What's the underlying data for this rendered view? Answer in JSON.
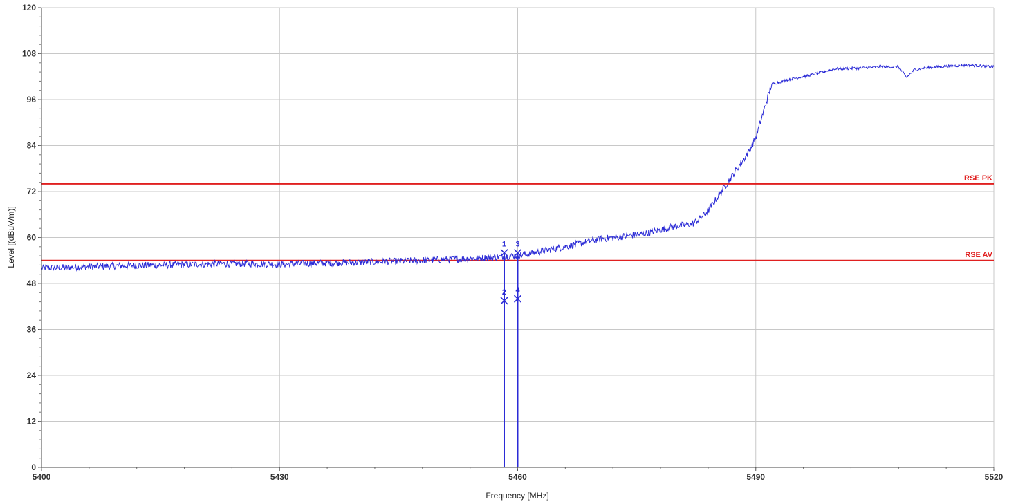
{
  "chart_data": {
    "type": "line",
    "xlabel": "Frequency [MHz]",
    "ylabel": "Level [(dBuV/m)]",
    "xlim": [
      5400,
      5520
    ],
    "ylim": [
      0,
      120
    ],
    "x_ticks": [
      "5400",
      "5430",
      "5460",
      "5490",
      "5520"
    ],
    "y_ticks": [
      "0",
      "12",
      "24",
      "36",
      "48",
      "60",
      "72",
      "84",
      "96",
      "108",
      "120"
    ],
    "grid": true,
    "trace_color": "#2b2bd6",
    "trace_points": [
      [
        5400,
        52.0
      ],
      [
        5405,
        52.3
      ],
      [
        5410,
        52.6
      ],
      [
        5415,
        52.8
      ],
      [
        5420,
        53.0
      ],
      [
        5425,
        53.2
      ],
      [
        5430,
        53.0
      ],
      [
        5435,
        53.3
      ],
      [
        5440,
        53.5
      ],
      [
        5445,
        53.8
      ],
      [
        5450,
        54.2
      ],
      [
        5455,
        54.6
      ],
      [
        5458.3,
        55.0
      ],
      [
        5460,
        55.3
      ],
      [
        5462,
        56.0
      ],
      [
        5465,
        57.2
      ],
      [
        5468,
        58.5
      ],
      [
        5470,
        59.5
      ],
      [
        5473,
        60.2
      ],
      [
        5476,
        61.0
      ],
      [
        5478,
        62.0
      ],
      [
        5480,
        63.0
      ],
      [
        5482,
        63.5
      ],
      [
        5483,
        65.0
      ],
      [
        5484,
        67.0
      ],
      [
        5485,
        70.0
      ],
      [
        5486,
        73.0
      ],
      [
        5487,
        76.0
      ],
      [
        5488,
        79.0
      ],
      [
        5489,
        82.0
      ],
      [
        5490,
        86.0
      ],
      [
        5491,
        93.0
      ],
      [
        5492,
        100.0
      ],
      [
        5494,
        101.2
      ],
      [
        5496,
        102.0
      ],
      [
        5498,
        103.0
      ],
      [
        5500,
        104.0
      ],
      [
        5503,
        104.2
      ],
      [
        5506,
        104.6
      ],
      [
        5508,
        104.5
      ],
      [
        5509,
        101.8
      ],
      [
        5510,
        103.8
      ],
      [
        5512,
        104.4
      ],
      [
        5515,
        104.8
      ],
      [
        5517,
        105.0
      ],
      [
        5520,
        104.5
      ]
    ],
    "limit_lines": [
      {
        "name": "RSE PK",
        "value": 74,
        "color": "#e02020"
      },
      {
        "name": "RSE AV",
        "value": 54,
        "color": "#e02020"
      }
    ],
    "markers": [
      {
        "label": "1",
        "x": 5458.3,
        "y": 56
      },
      {
        "label": "2",
        "x": 5458.3,
        "y": 43.5
      },
      {
        "label": "3",
        "x": 5460,
        "y": 56
      },
      {
        "label": "4",
        "x": 5460,
        "y": 44
      }
    ],
    "marker_color": "#2b2bd6"
  }
}
